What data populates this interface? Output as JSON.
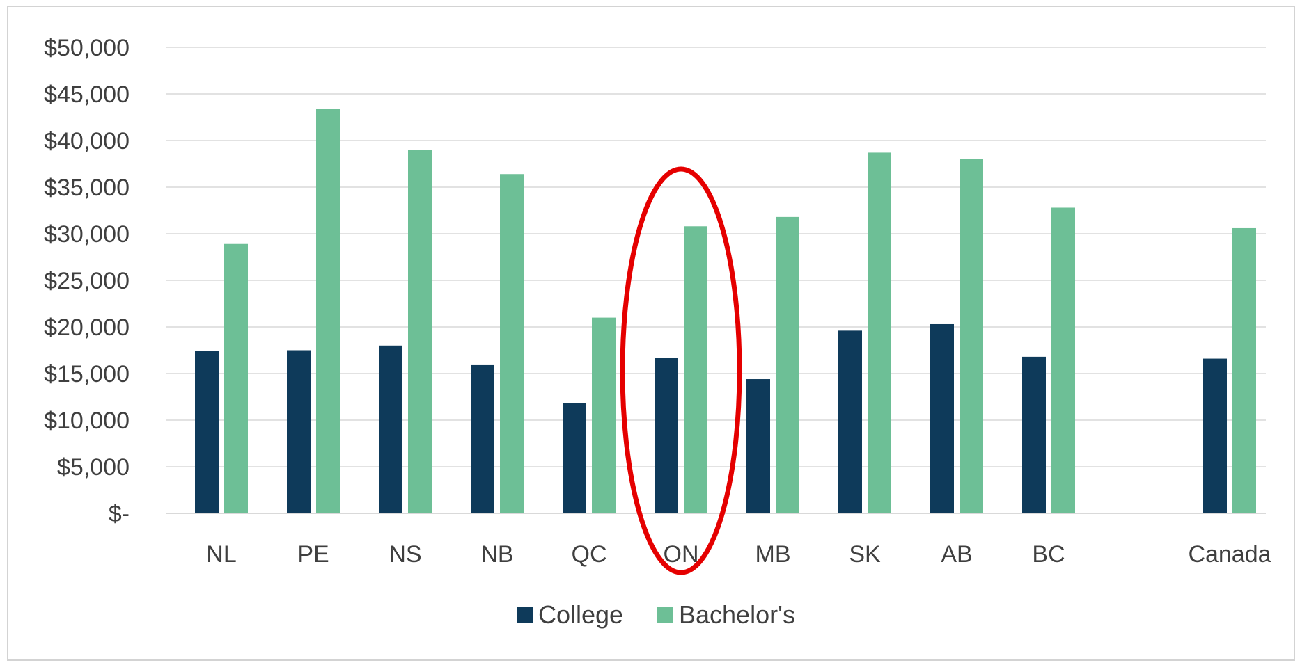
{
  "chart_data": {
    "type": "bar",
    "categories": [
      "NL",
      "PE",
      "NS",
      "NB",
      "QC",
      "ON",
      "MB",
      "SK",
      "AB",
      "BC",
      "Canada"
    ],
    "series": [
      {
        "name": "College",
        "values": [
          17400,
          17500,
          18000,
          15900,
          11800,
          16700,
          14400,
          19600,
          20300,
          16800,
          16600
        ]
      },
      {
        "name": "Bachelor's",
        "values": [
          28900,
          43400,
          39000,
          36400,
          21000,
          30800,
          31800,
          38700,
          38000,
          32800,
          30600
        ]
      }
    ],
    "yticks": [
      "$-",
      "$5,000",
      "$10,000",
      "$15,000",
      "$20,000",
      "$25,000",
      "$30,000",
      "$35,000",
      "$40,000",
      "$45,000",
      "$50,000"
    ],
    "ylim": [
      0,
      50000
    ],
    "grid": true,
    "legend_position": "bottom",
    "highlighted_category": "ON",
    "colors": {
      "College": "#0e3a5a",
      "Bachelor's": "#6dbf96",
      "highlight": "#e50000",
      "grid": "#d9d9d9"
    }
  }
}
